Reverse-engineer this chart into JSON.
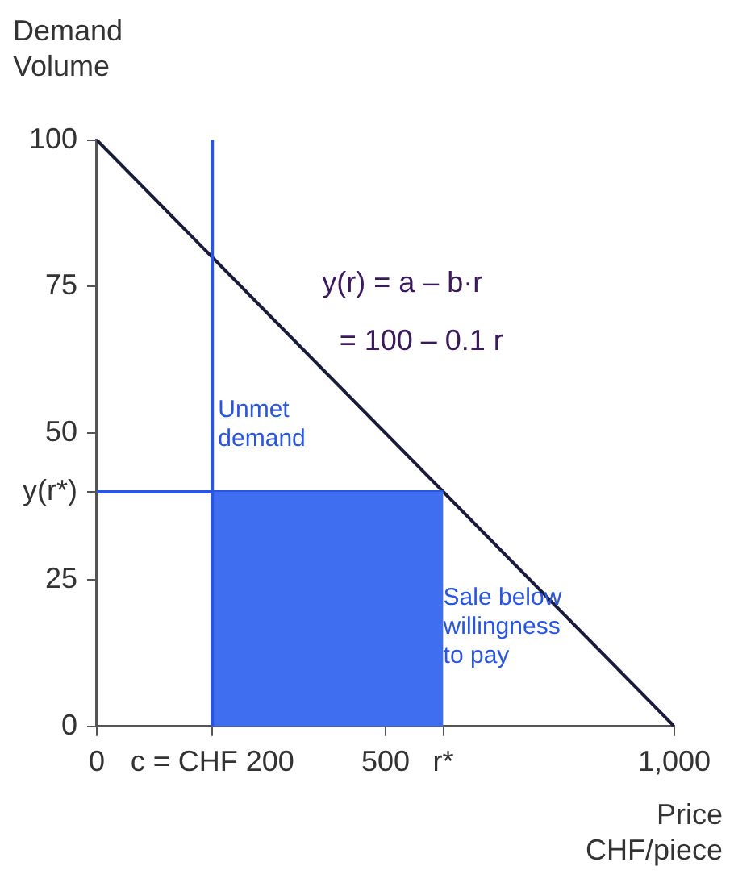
{
  "chart_data": {
    "type": "line",
    "xlabel": "Price CHF/piece",
    "ylabel": "Demand Volume",
    "xlim": [
      0,
      1000
    ],
    "ylim": [
      0,
      100
    ],
    "xticks": [
      0,
      {
        "value": 200,
        "label": "c = CHF 200"
      },
      500,
      {
        "value": 600,
        "label": "r*"
      },
      {
        "value": 1000,
        "label": "1,000"
      }
    ],
    "yticks": [
      0,
      25,
      {
        "value": 40,
        "label": "y(r*)"
      },
      50,
      75,
      100
    ],
    "series": [
      {
        "type": "area",
        "x": [
          200,
          600
        ],
        "values": [
          40,
          40
        ],
        "color": "#3f6ef0"
      },
      {
        "type": "line",
        "x": [
          0,
          600
        ],
        "values": [
          40,
          40
        ],
        "color": "#2a55e0"
      },
      {
        "type": "line",
        "x": [
          0,
          1000
        ],
        "values": [
          100,
          0
        ],
        "color": "#1a1a3a"
      }
    ],
    "ref_lines": [
      {
        "axis": "x",
        "value": 200,
        "color": "#2a55e0"
      }
    ],
    "annotations": [
      "y(r) = a – b·r",
      "= 100 – 0.1 r",
      {
        "text": "Unmet demand",
        "x": 210,
        "y": 56
      },
      "Sale below willingness to pay"
    ],
    "grid": false,
    "legend": false,
    "marker": "none",
    "line_style": "solid"
  }
}
